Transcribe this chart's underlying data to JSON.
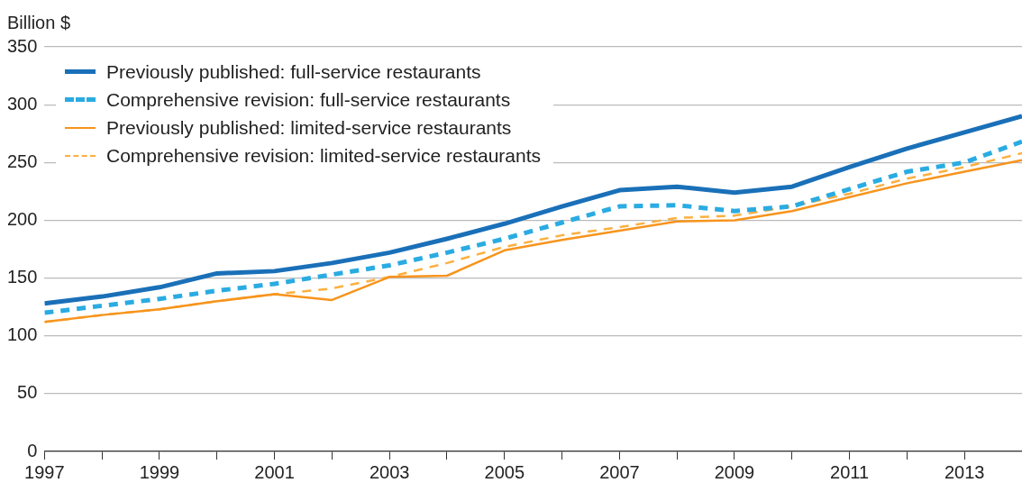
{
  "chart_data": {
    "type": "line",
    "ylabel": "Billion $",
    "x": [
      1997,
      1998,
      1999,
      2000,
      2001,
      2002,
      2003,
      2004,
      2005,
      2006,
      2007,
      2008,
      2009,
      2010,
      2011,
      2012,
      2013,
      2014
    ],
    "xlim": [
      1997,
      2014
    ],
    "xticks": [
      1997,
      {
        "value": 1998,
        "label": null
      },
      1999,
      {
        "value": 2000,
        "label": null
      },
      2001,
      {
        "value": 2002,
        "label": null
      },
      2003,
      {
        "value": 2004,
        "label": null
      },
      2005,
      {
        "value": 2006,
        "label": null
      },
      2007,
      {
        "value": 2008,
        "label": null
      },
      2009,
      {
        "value": 2010,
        "label": null
      },
      2011,
      {
        "value": 2012,
        "label": null
      },
      2013
    ],
    "ylim": [
      0,
      350
    ],
    "yticks": [
      0,
      50,
      100,
      150,
      200,
      250,
      300,
      350
    ],
    "grid": "y",
    "legend": "top left",
    "marker": "none",
    "series": [
      {
        "name": "Previously published: full-service restaurants",
        "color": "#1a70b8",
        "line_style": "solid",
        "values": [
          128,
          134,
          142,
          154,
          156,
          163,
          172,
          184,
          197,
          212,
          226,
          229,
          224,
          229,
          246,
          262,
          276,
          290
        ]
      },
      {
        "name": "Comprehensive revision: full-service restaurants",
        "color": "#2aabe2",
        "line_style": "dashed",
        "values": [
          120,
          126,
          132,
          139,
          145,
          153,
          161,
          172,
          184,
          198,
          212,
          213,
          208,
          212,
          227,
          242,
          250,
          268
        ]
      },
      {
        "name": "Previously published: limited-service restaurants",
        "color": "#f7941d",
        "line_style": "solid",
        "values": [
          112,
          118,
          123,
          130,
          136,
          131,
          151,
          152,
          174,
          183,
          191,
          199,
          200,
          208,
          220,
          232,
          242,
          252
        ]
      },
      {
        "name": "Comprehensive revision: limited-service restaurants",
        "color": "#fbb040",
        "line_style": "dashed",
        "values": [
          112,
          118,
          123,
          130,
          136,
          141,
          151,
          163,
          177,
          187,
          194,
          202,
          204,
          212,
          223,
          236,
          246,
          258
        ]
      }
    ]
  }
}
